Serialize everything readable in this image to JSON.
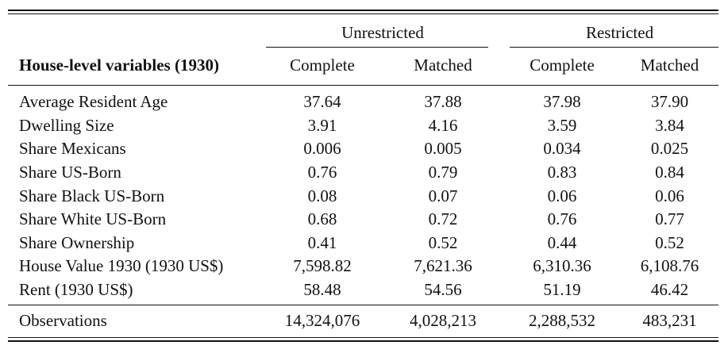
{
  "table": {
    "group_headers": {
      "unrestricted": "Unrestricted",
      "restricted": "Restricted"
    },
    "row_header": "House-level variables (1930)",
    "column_headers": [
      "Complete",
      "Matched",
      "Complete",
      "Matched"
    ],
    "rows": [
      {
        "label": "Average Resident Age",
        "values": [
          "37.64",
          "37.88",
          "37.98",
          "37.90"
        ]
      },
      {
        "label": "Dwelling Size",
        "values": [
          "3.91",
          "4.16",
          "3.59",
          "3.84"
        ]
      },
      {
        "label": "Share Mexicans",
        "values": [
          "0.006",
          "0.005",
          "0.034",
          "0.025"
        ]
      },
      {
        "label": "Share US-Born",
        "values": [
          "0.76",
          "0.79",
          "0.83",
          "0.84"
        ]
      },
      {
        "label": "Share Black US-Born",
        "values": [
          "0.08",
          "0.07",
          "0.06",
          "0.06"
        ]
      },
      {
        "label": "Share White US-Born",
        "values": [
          "0.68",
          "0.72",
          "0.76",
          "0.77"
        ]
      },
      {
        "label": "Share Ownership",
        "values": [
          "0.41",
          "0.52",
          "0.44",
          "0.52"
        ]
      },
      {
        "label": "House Value 1930 (1930 US$)",
        "values": [
          "7,598.82",
          "7,621.36",
          "6,310.36",
          "6,108.76"
        ]
      },
      {
        "label": "Rent (1930 US$)",
        "values": [
          "58.48",
          "54.56",
          "51.19",
          "46.42"
        ]
      }
    ],
    "observations": {
      "label": "Observations",
      "values": [
        "14,324,076",
        "4,028,213",
        "2,288,532",
        "483,231"
      ]
    }
  }
}
